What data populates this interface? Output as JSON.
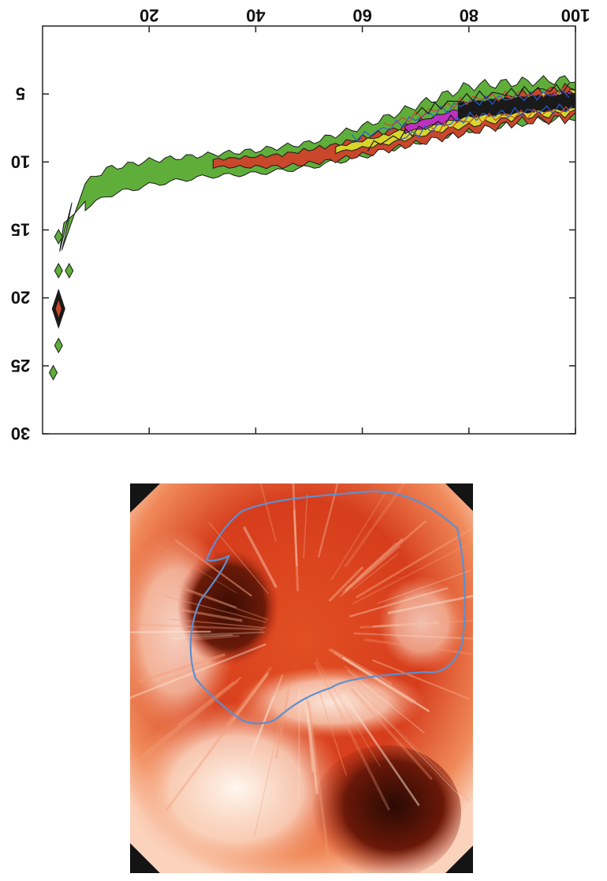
{
  "chart_data": [
    {
      "type": "contour",
      "title": "",
      "xlabel": "",
      "ylabel": "",
      "xlim": [
        0,
        100
      ],
      "ylim": [
        0,
        30
      ],
      "x_axis_position": "top",
      "y_axis_inverted": true,
      "tick_labels_mirrored": true,
      "grid": false,
      "legend": "none",
      "x_ticks": [
        {
          "value": 20,
          "label": "20"
        },
        {
          "value": 40,
          "label": "40"
        },
        {
          "value": 60,
          "label": "60"
        },
        {
          "value": 80,
          "label": "80"
        },
        {
          "value": 100,
          "label": "100"
        }
      ],
      "y_ticks": [
        {
          "value": 5,
          "label": "5"
        },
        {
          "value": 10,
          "label": "10"
        },
        {
          "value": 15,
          "label": "15"
        },
        {
          "value": 20,
          "label": "20"
        },
        {
          "value": 25,
          "label": "25"
        },
        {
          "value": 30,
          "label": "30"
        }
      ],
      "contour_levels_colors": [
        "#5fae3a",
        "#c9472b",
        "#d9d62a",
        "#2a5bd9",
        "#c030c0",
        "#1a1a1a"
      ],
      "main_band": {
        "centerline": [
          [
            3,
            26
          ],
          [
            3,
            22
          ],
          [
            4,
            18
          ],
          [
            6,
            14
          ],
          [
            8,
            12.5
          ],
          [
            12,
            11.5
          ],
          [
            20,
            10.8
          ],
          [
            30,
            10.3
          ],
          [
            40,
            10.0
          ],
          [
            50,
            9.5
          ],
          [
            60,
            8.5
          ],
          [
            70,
            7.2
          ],
          [
            80,
            6.0
          ],
          [
            90,
            5.6
          ],
          [
            100,
            5.3
          ]
        ],
        "half_width": [
          [
            3,
            0.3
          ],
          [
            6,
            0.8
          ],
          [
            10,
            1.0
          ],
          [
            30,
            0.8
          ],
          [
            50,
            0.9
          ],
          [
            65,
            1.2
          ],
          [
            80,
            1.6
          ],
          [
            100,
            1.4
          ]
        ]
      },
      "inner_core_red": [
        [
          32,
          10.1
        ],
        [
          45,
          9.9
        ],
        [
          55,
          9.3
        ],
        [
          65,
          8.4
        ],
        [
          75,
          7.4
        ],
        [
          90,
          6.0
        ],
        [
          100,
          5.6
        ]
      ],
      "inner_core_yellow": [
        [
          55,
          9.1
        ],
        [
          65,
          8.3
        ],
        [
          75,
          7.2
        ],
        [
          90,
          6.0
        ],
        [
          100,
          5.6
        ]
      ],
      "hot_core": [
        [
          68,
          7.6
        ],
        [
          75,
          6.8
        ],
        [
          80,
          6.3
        ],
        [
          90,
          5.8
        ],
        [
          100,
          5.5
        ]
      ],
      "isolated_blobs": [
        {
          "x": 3.0,
          "y": 20.8,
          "color": "#1a1a1a"
        },
        {
          "x": 3.0,
          "y": 18.0,
          "color": "#5fae3a"
        },
        {
          "x": 5.0,
          "y": 18.0,
          "color": "#5fae3a"
        },
        {
          "x": 3.0,
          "y": 15.5,
          "color": "#5fae3a"
        },
        {
          "x": 3.0,
          "y": 23.5,
          "color": "#5fae3a"
        },
        {
          "x": 2.0,
          "y": 25.5,
          "color": "#5fae3a"
        }
      ]
    },
    {
      "type": "image",
      "subject": "endoscopic-view",
      "region_outline_color": "#5e8fd0",
      "tissue_colors": [
        "#c7301a",
        "#e24f22",
        "#f3a07a",
        "#fbe6d6",
        "#4a1006"
      ]
    }
  ]
}
